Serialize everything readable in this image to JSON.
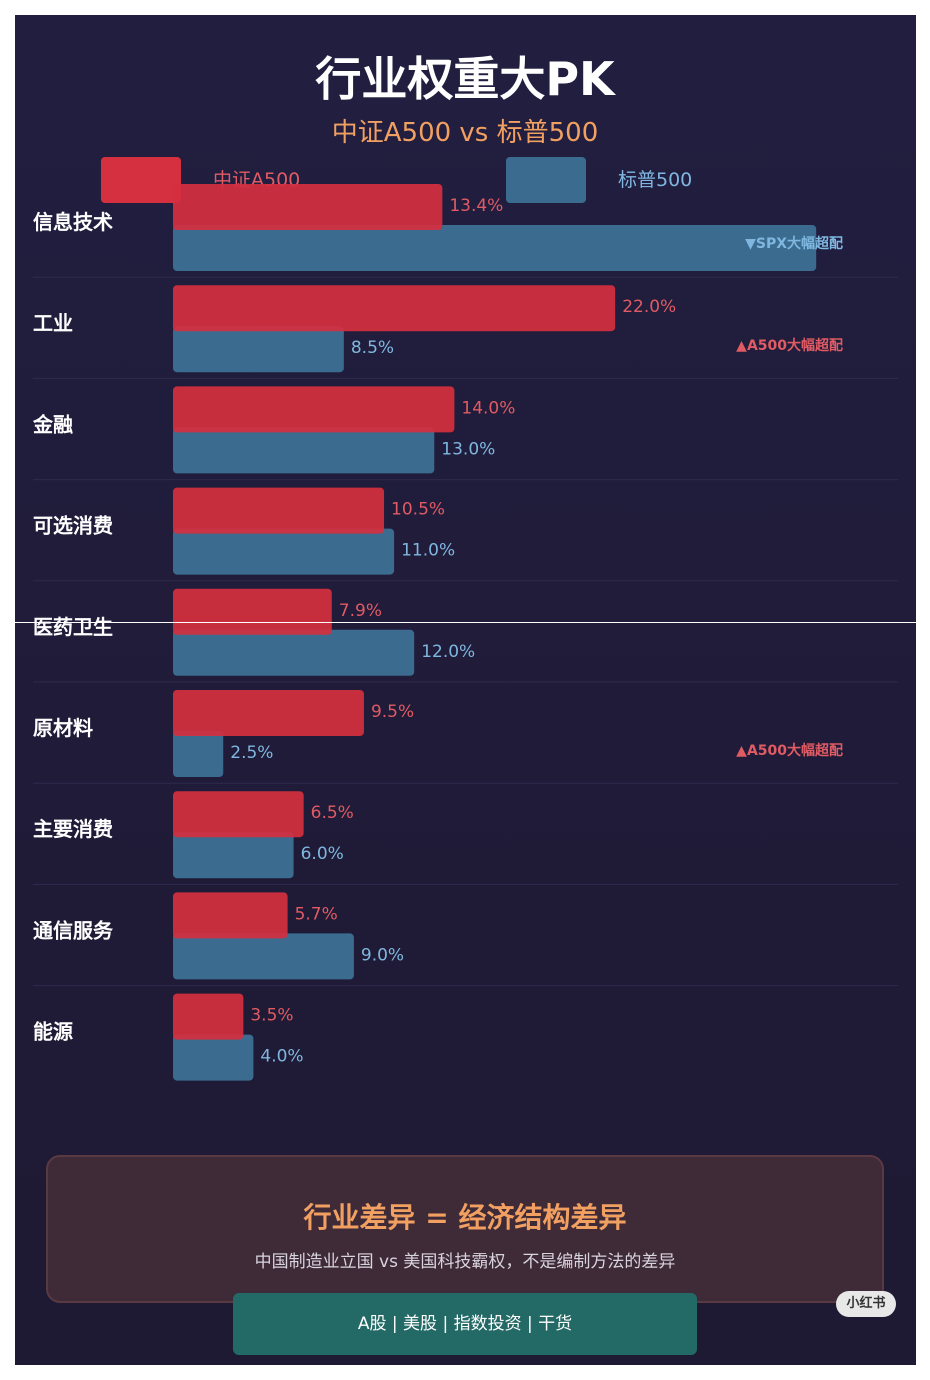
{
  "title": "行业权重大PK",
  "subtitle": "中证A500 vs 标普500",
  "colors": {
    "a500": "#d5303f",
    "spx": "#3b6b8f",
    "a500_text": "#e05b63",
    "spx_text": "#7fb7e0",
    "accent": "#f1a061"
  },
  "legend": [
    {
      "label": "中证A500",
      "color": "#d5303f"
    },
    {
      "label": "标普500",
      "color": "#3b6b8f"
    }
  ],
  "chart_data": {
    "type": "bar",
    "orientation": "horizontal",
    "categories": [
      "信息技术",
      "工业",
      "金融",
      "可选消费",
      "医药卫生",
      "原材料",
      "主要消费",
      "通信服务",
      "能源"
    ],
    "series": [
      {
        "name": "中证A500",
        "values": [
          13.4,
          22.0,
          14.0,
          10.5,
          7.9,
          9.5,
          6.5,
          5.7,
          3.5
        ],
        "labels": [
          "13.4%",
          "22.0%",
          "14.0%",
          "10.5%",
          "7.9%",
          "9.5%",
          "6.5%",
          "5.7%",
          "3.5%"
        ]
      },
      {
        "name": "标普500",
        "values": [
          32.0,
          8.5,
          13.0,
          11.0,
          12.0,
          2.5,
          6.0,
          9.0,
          4.0
        ],
        "labels": [
          "",
          "8.5%",
          "13.0%",
          "11.0%",
          "12.0%",
          "2.5%",
          "6.0%",
          "9.0%",
          "4.0%"
        ]
      }
    ],
    "annotations": [
      {
        "category": "信息技术",
        "text": "▼SPX大幅超配",
        "series": "标普500"
      },
      {
        "category": "工业",
        "text": "▲A500大幅超配",
        "series": "中证A500"
      },
      {
        "category": "原材料",
        "text": "▲A500大幅超配",
        "series": "中证A500"
      }
    ],
    "legend_position": "top",
    "grid": false
  },
  "summary": {
    "title": "行业差异 = 经济结构差异",
    "text": "中国制造业立国 vs 美国科技霸权，不是编制方法的差异"
  },
  "tags": "A股 | 美股 | 指数投资 | 干货",
  "badge": "小红书"
}
